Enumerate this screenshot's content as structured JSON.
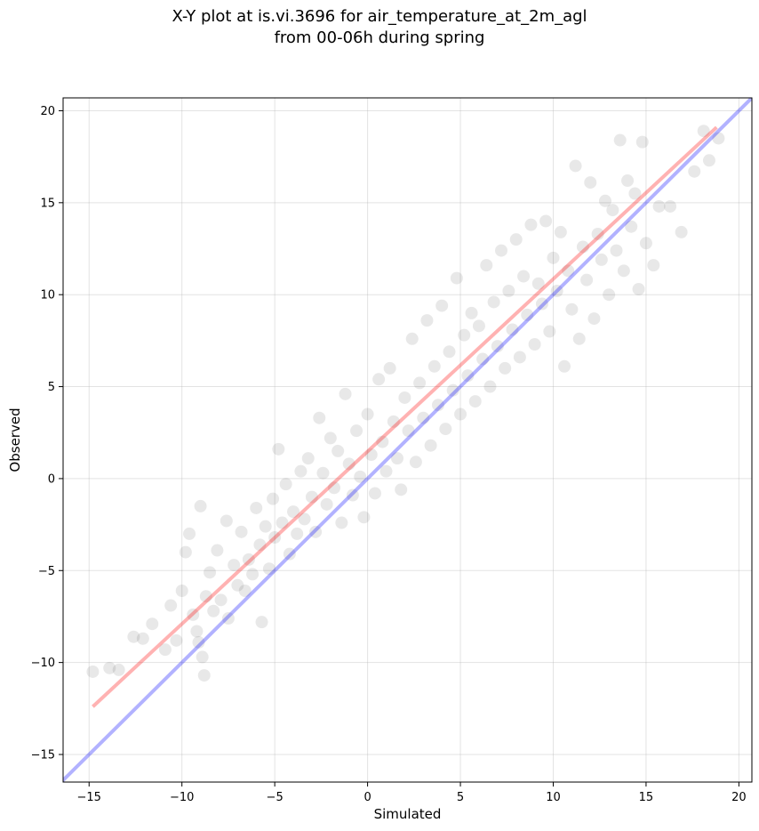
{
  "chart_data": {
    "type": "scatter",
    "title_line1": "X-Y plot at is.vi.3696 for air_temperature_at_2m_agl",
    "title_line2": "from 00-06h during spring",
    "xlabel": "Simulated",
    "ylabel": "Observed",
    "xlim": [
      -16.4,
      20.7
    ],
    "ylim": [
      -16.5,
      20.7
    ],
    "xticks": [
      -15,
      -10,
      -5,
      0,
      5,
      10,
      15,
      20
    ],
    "yticks": [
      -15,
      -10,
      -5,
      0,
      5,
      10,
      15,
      20
    ],
    "grid": true,
    "series": [
      {
        "kind": "points",
        "color": "#000000",
        "opacity": 0.09,
        "points": [
          [
            -14.8,
            -10.5
          ],
          [
            -13.9,
            -10.3
          ],
          [
            -13.4,
            -10.4
          ],
          [
            -12.6,
            -8.6
          ],
          [
            -12.1,
            -8.7
          ],
          [
            -11.6,
            -7.9
          ],
          [
            -10.9,
            -9.3
          ],
          [
            -10.6,
            -6.9
          ],
          [
            -10.3,
            -8.8
          ],
          [
            -10.0,
            -6.1
          ],
          [
            -9.8,
            -4.0
          ],
          [
            -9.6,
            -3.0
          ],
          [
            -9.4,
            -7.4
          ],
          [
            -9.2,
            -8.3
          ],
          [
            -9.1,
            -8.9
          ],
          [
            -9.0,
            -1.5
          ],
          [
            -8.9,
            -9.7
          ],
          [
            -8.8,
            -10.7
          ],
          [
            -8.7,
            -6.4
          ],
          [
            -8.5,
            -5.1
          ],
          [
            -8.3,
            -7.2
          ],
          [
            -8.1,
            -3.9
          ],
          [
            -7.9,
            -6.6
          ],
          [
            -7.6,
            -2.3
          ],
          [
            -7.5,
            -7.6
          ],
          [
            -7.2,
            -4.7
          ],
          [
            -7.0,
            -5.8
          ],
          [
            -6.8,
            -2.9
          ],
          [
            -6.6,
            -6.1
          ],
          [
            -6.4,
            -4.4
          ],
          [
            -6.2,
            -5.2
          ],
          [
            -6.0,
            -1.6
          ],
          [
            -5.8,
            -3.6
          ],
          [
            -5.7,
            -7.8
          ],
          [
            -5.5,
            -2.6
          ],
          [
            -5.3,
            -4.9
          ],
          [
            -5.1,
            -1.1
          ],
          [
            -5.0,
            -3.2
          ],
          [
            -4.8,
            1.6
          ],
          [
            -4.6,
            -2.4
          ],
          [
            -4.4,
            -0.3
          ],
          [
            -4.2,
            -4.1
          ],
          [
            -4.0,
            -1.8
          ],
          [
            -3.8,
            -3.0
          ],
          [
            -3.6,
            0.4
          ],
          [
            -3.4,
            -2.2
          ],
          [
            -3.2,
            1.1
          ],
          [
            -3.0,
            -1.0
          ],
          [
            -2.8,
            -2.9
          ],
          [
            -2.6,
            3.3
          ],
          [
            -2.4,
            0.3
          ],
          [
            -2.2,
            -1.4
          ],
          [
            -2.0,
            2.2
          ],
          [
            -1.8,
            -0.5
          ],
          [
            -1.6,
            1.5
          ],
          [
            -1.4,
            -2.4
          ],
          [
            -1.2,
            4.6
          ],
          [
            -1.0,
            0.8
          ],
          [
            -0.8,
            -0.9
          ],
          [
            -0.6,
            2.6
          ],
          [
            -0.4,
            0.1
          ],
          [
            -0.2,
            -2.1
          ],
          [
            0.0,
            3.5
          ],
          [
            0.2,
            1.3
          ],
          [
            0.4,
            -0.8
          ],
          [
            0.6,
            5.4
          ],
          [
            0.8,
            2.0
          ],
          [
            1.0,
            0.4
          ],
          [
            1.2,
            6.0
          ],
          [
            1.4,
            3.1
          ],
          [
            1.6,
            1.1
          ],
          [
            1.8,
            -0.6
          ],
          [
            2.0,
            4.4
          ],
          [
            2.2,
            2.6
          ],
          [
            2.4,
            7.6
          ],
          [
            2.6,
            0.9
          ],
          [
            2.8,
            5.2
          ],
          [
            3.0,
            3.3
          ],
          [
            3.2,
            8.6
          ],
          [
            3.4,
            1.8
          ],
          [
            3.6,
            6.1
          ],
          [
            3.8,
            4.0
          ],
          [
            4.0,
            9.4
          ],
          [
            4.2,
            2.7
          ],
          [
            4.4,
            6.9
          ],
          [
            4.6,
            4.8
          ],
          [
            4.8,
            10.9
          ],
          [
            5.0,
            3.5
          ],
          [
            5.2,
            7.8
          ],
          [
            5.4,
            5.6
          ],
          [
            5.6,
            9.0
          ],
          [
            5.8,
            4.2
          ],
          [
            6.0,
            8.3
          ],
          [
            6.2,
            6.5
          ],
          [
            6.4,
            11.6
          ],
          [
            6.6,
            5.0
          ],
          [
            6.8,
            9.6
          ],
          [
            7.0,
            7.2
          ],
          [
            7.2,
            12.4
          ],
          [
            7.4,
            6.0
          ],
          [
            7.6,
            10.2
          ],
          [
            7.8,
            8.1
          ],
          [
            8.0,
            13.0
          ],
          [
            8.2,
            6.6
          ],
          [
            8.4,
            11.0
          ],
          [
            8.6,
            8.9
          ],
          [
            8.8,
            13.8
          ],
          [
            9.0,
            7.3
          ],
          [
            9.2,
            10.6
          ],
          [
            9.4,
            9.5
          ],
          [
            9.6,
            14.0
          ],
          [
            9.8,
            8.0
          ],
          [
            10.0,
            12.0
          ],
          [
            10.2,
            10.2
          ],
          [
            10.4,
            13.4
          ],
          [
            10.6,
            6.1
          ],
          [
            10.8,
            11.3
          ],
          [
            11.0,
            9.2
          ],
          [
            11.2,
            17.0
          ],
          [
            11.4,
            7.6
          ],
          [
            11.6,
            12.6
          ],
          [
            11.8,
            10.8
          ],
          [
            12.0,
            16.1
          ],
          [
            12.2,
            8.7
          ],
          [
            12.4,
            13.3
          ],
          [
            12.6,
            11.9
          ],
          [
            12.8,
            15.1
          ],
          [
            13.0,
            10.0
          ],
          [
            13.2,
            14.6
          ],
          [
            13.4,
            12.4
          ],
          [
            13.6,
            18.4
          ],
          [
            13.8,
            11.3
          ],
          [
            14.0,
            16.2
          ],
          [
            14.2,
            13.7
          ],
          [
            14.4,
            15.5
          ],
          [
            14.6,
            10.3
          ],
          [
            14.8,
            18.3
          ],
          [
            15.0,
            12.8
          ],
          [
            15.4,
            11.6
          ],
          [
            15.7,
            14.8
          ],
          [
            16.3,
            14.8
          ],
          [
            16.9,
            13.4
          ],
          [
            17.6,
            16.7
          ],
          [
            18.1,
            18.9
          ],
          [
            18.4,
            17.3
          ],
          [
            18.9,
            18.5
          ]
        ]
      },
      {
        "kind": "line",
        "color": "#ff0000",
        "opacity": 0.3,
        "x": [
          -14.8,
          18.8
        ],
        "y": [
          -12.4,
          19.1
        ]
      },
      {
        "kind": "line",
        "color": "#0000ff",
        "opacity": 0.3,
        "x": [
          -16.5,
          20.8
        ],
        "y": [
          -16.5,
          20.8
        ]
      }
    ]
  }
}
